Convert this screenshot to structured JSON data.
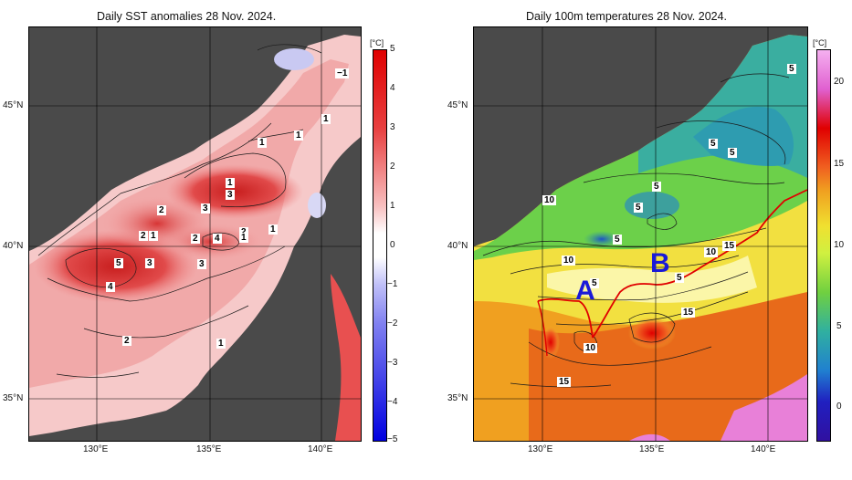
{
  "left_map": {
    "title": "Daily SST anomalies 28 Nov. 2024.",
    "unit": "[°C]",
    "colorbar_ticks": [
      "5",
      "4",
      "3",
      "2",
      "1",
      "0",
      "−1",
      "−2",
      "−3",
      "−4",
      "−5"
    ],
    "contour_labels": [
      "−1",
      "1",
      "1",
      "1",
      "1",
      "3",
      "2",
      "3",
      "2",
      "1",
      "2",
      "1",
      "4",
      "2",
      "1",
      "5",
      "3",
      "3",
      "4",
      "2",
      "1"
    ],
    "colors": {
      "land": "#4a4a4a",
      "positive": "#e83b3b",
      "negative": "#3b3bd8",
      "neutral": "#ffffff"
    }
  },
  "right_map": {
    "title": "Daily 100m temperatures 28 Nov. 2024.",
    "unit": "[°C]",
    "colorbar_ticks": [
      "20",
      "15",
      "10",
      "5",
      "0"
    ],
    "contour_labels": [
      "5",
      "5",
      "5",
      "5",
      "10",
      "5",
      "5",
      "10",
      "10",
      "15",
      "5",
      "5",
      "15",
      "10",
      "15"
    ],
    "region_labels": [
      "A",
      "B"
    ],
    "colors": {
      "land": "#4a4a4a",
      "front_line": "#e00000",
      "region_label": "#1a1ad8"
    }
  },
  "axes": {
    "lat_labels": [
      "45°N",
      "40°N",
      "35°N"
    ],
    "lon_labels": [
      "130°E",
      "135°E",
      "140°E"
    ]
  }
}
